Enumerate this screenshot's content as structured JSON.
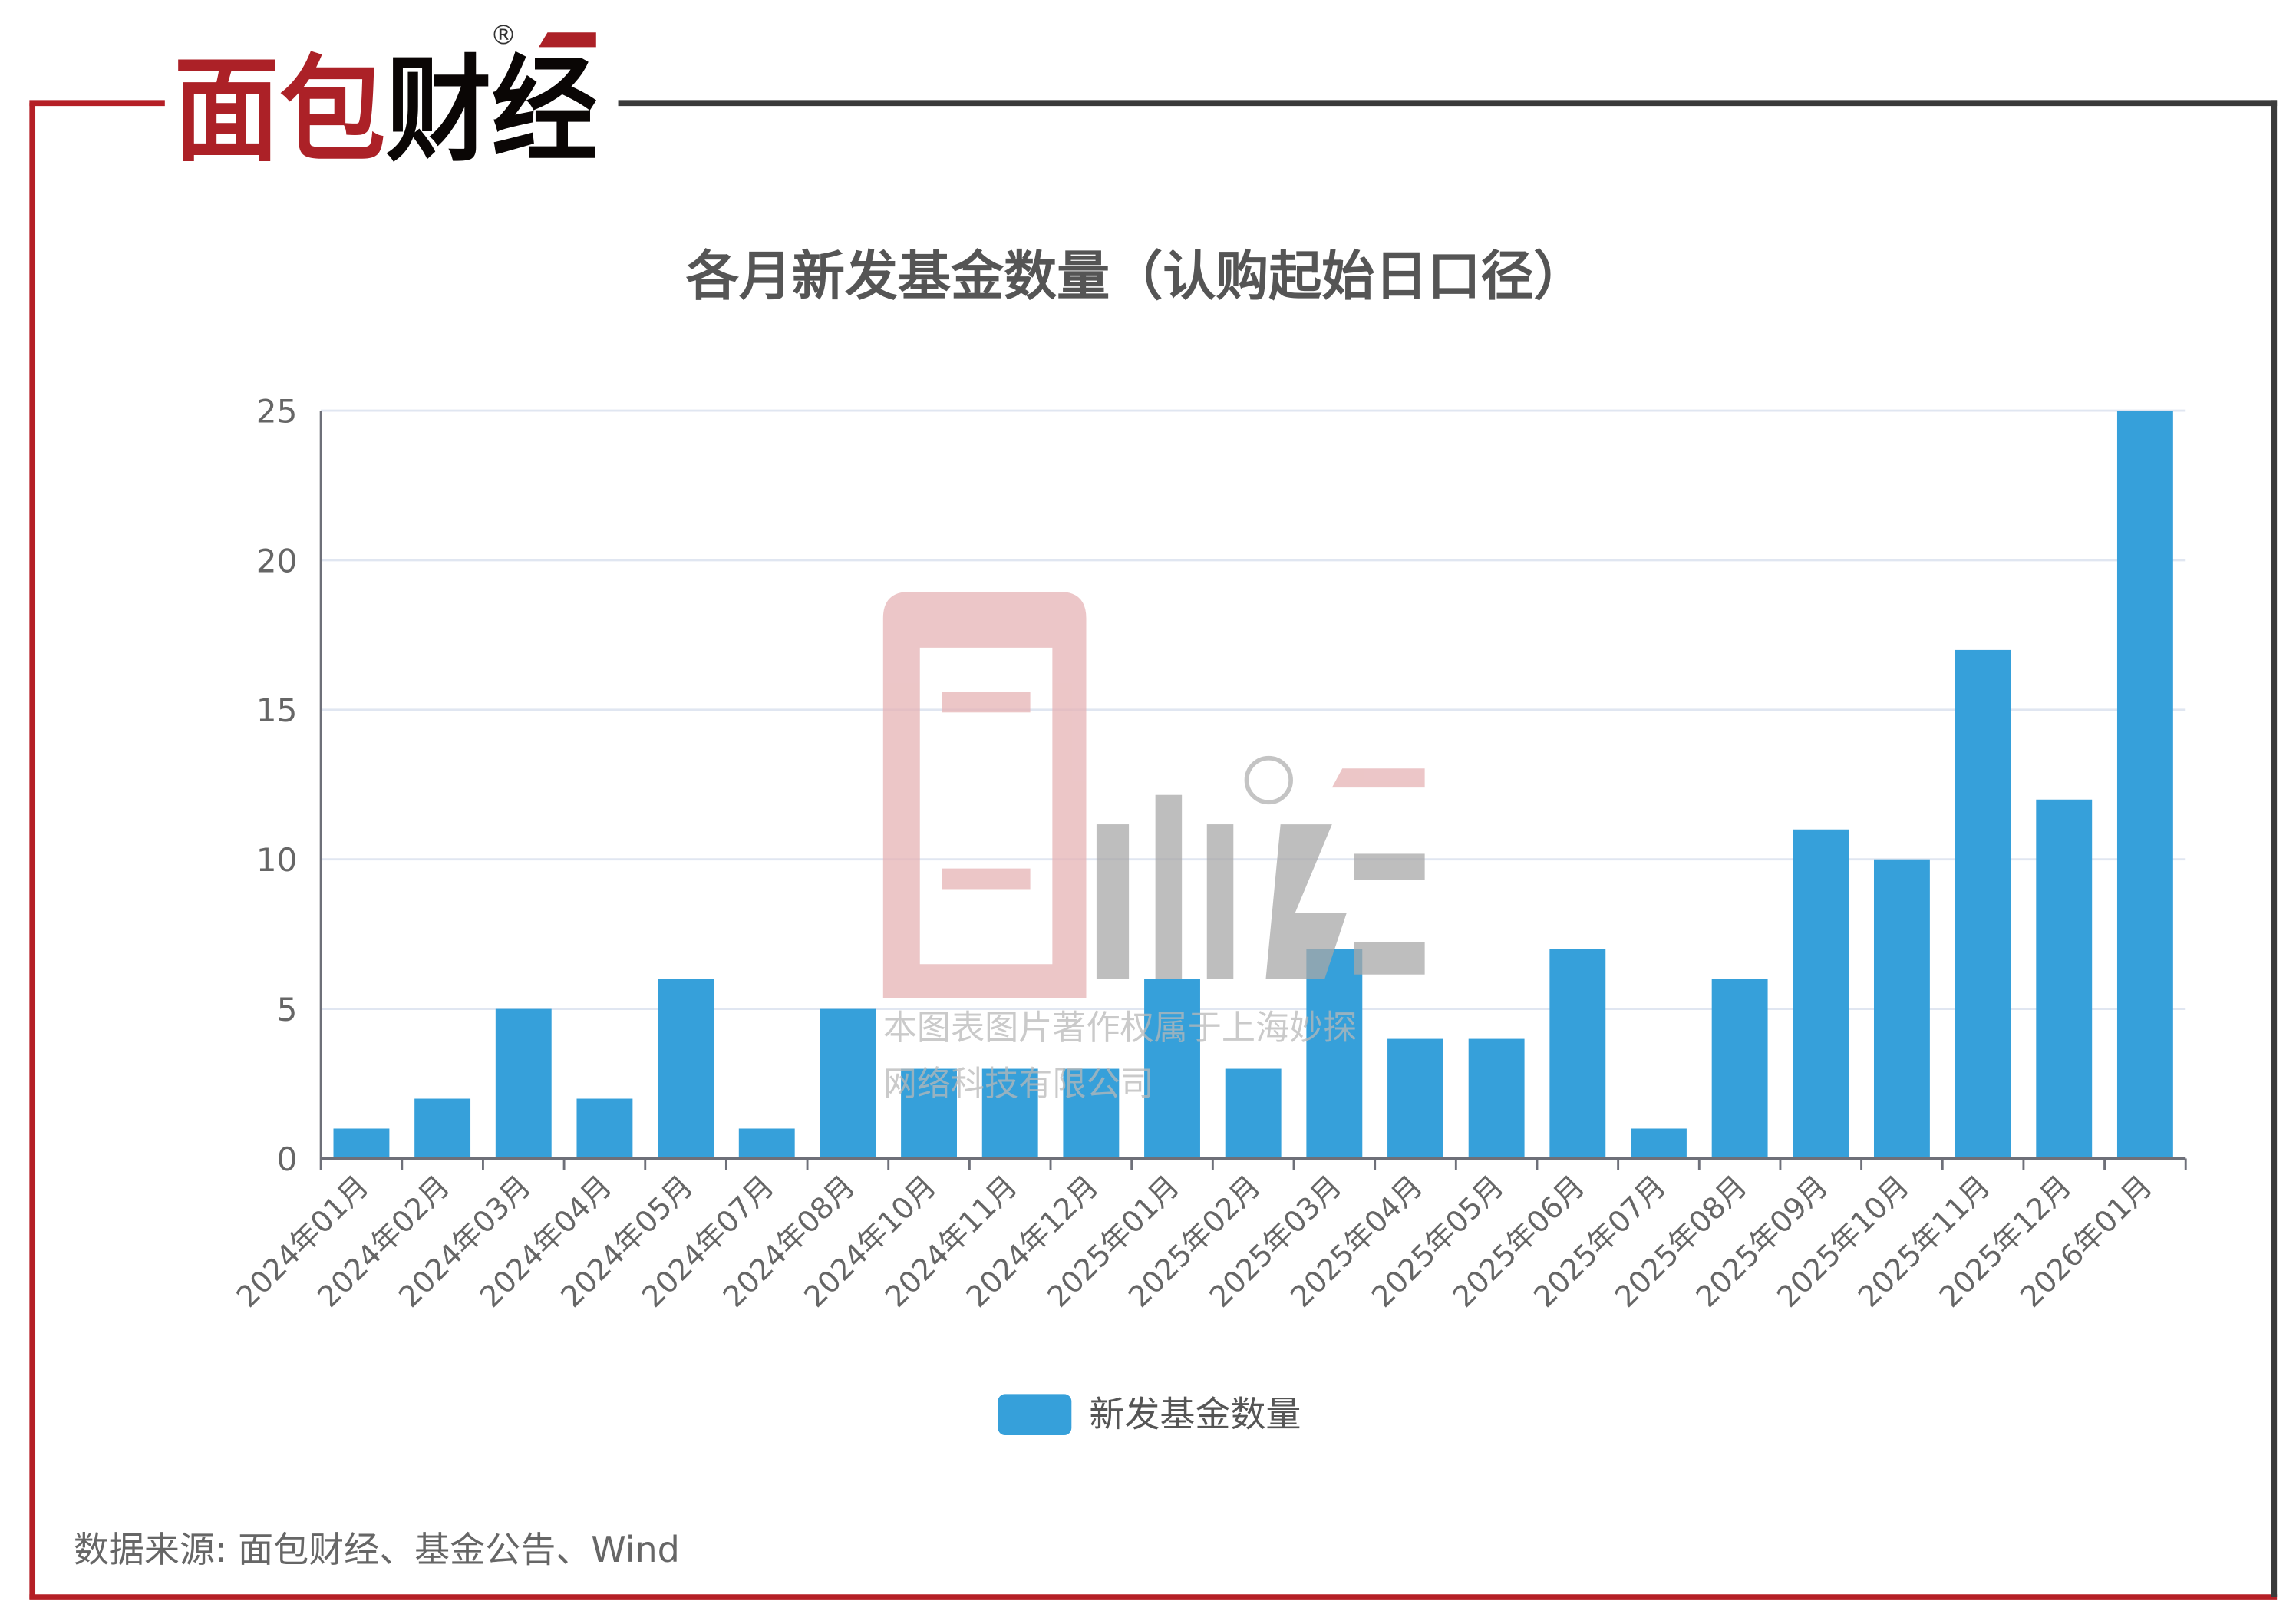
{
  "brand": {
    "logo_text": "面包财经",
    "logo_red": "面包",
    "logo_black": "财经",
    "registered_mark": "®"
  },
  "watermark": {
    "line1": "本图表图片著作权属于上海妙探",
    "line2": "网络科技有限公司"
  },
  "source": "数据来源: 面包财经、基金公告、Wind",
  "colors": {
    "bar": "#36a0da",
    "frame_red": "#b51f26",
    "frame_dark": "#3a3a3a",
    "grid": "#e0e6f1"
  },
  "chart_data": {
    "type": "bar",
    "title": "各月新发基金数量（认购起始日口径）",
    "categories": [
      "2024年01月",
      "2024年02月",
      "2024年03月",
      "2024年04月",
      "2024年05月",
      "2024年07月",
      "2024年08月",
      "2024年10月",
      "2024年11月",
      "2024年12月",
      "2025年01月",
      "2025年02月",
      "2025年03月",
      "2025年04月",
      "2025年05月",
      "2025年06月",
      "2025年07月",
      "2025年08月",
      "2025年09月",
      "2025年10月",
      "2025年11月",
      "2025年12月",
      "2026年01月"
    ],
    "series": [
      {
        "name": "新发基金数量",
        "values": [
          1,
          2,
          5,
          2,
          6,
          1,
          5,
          3,
          3,
          3,
          6,
          3,
          7,
          4,
          4,
          7,
          1,
          6,
          11,
          10,
          17,
          12,
          25
        ]
      }
    ],
    "yticks": [
      0,
      5,
      10,
      15,
      20,
      25
    ],
    "ylim": [
      0,
      25
    ],
    "grid": true,
    "legend": "bottom-center"
  }
}
